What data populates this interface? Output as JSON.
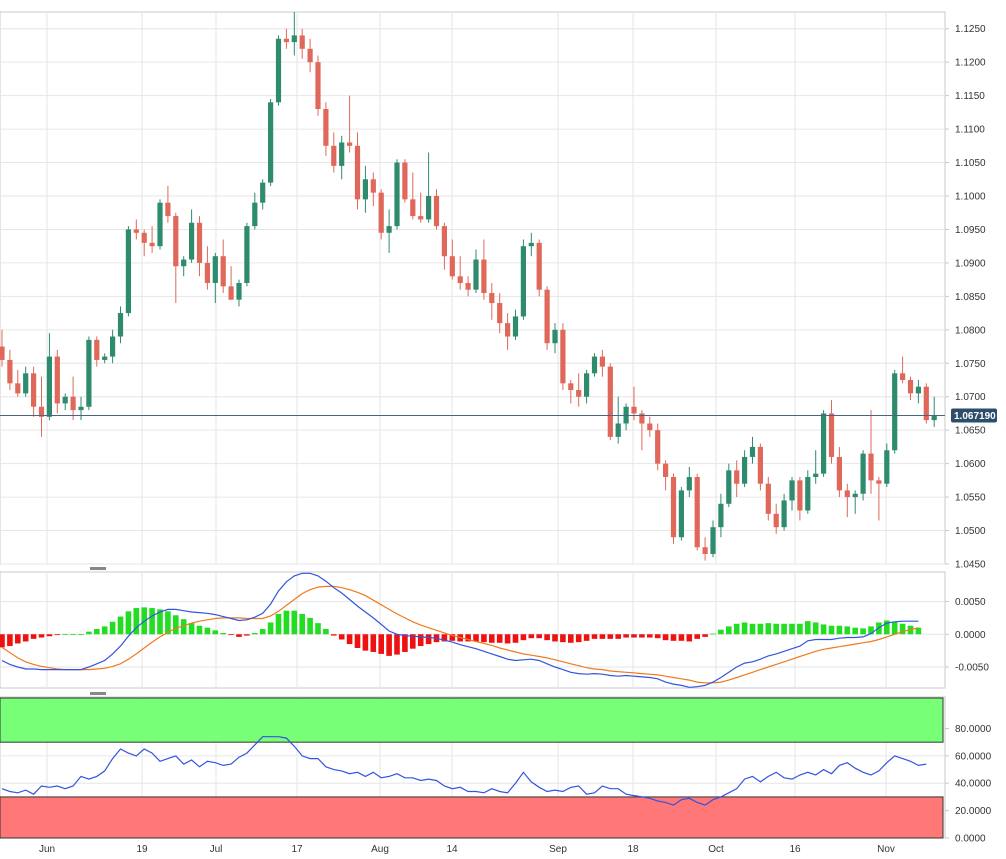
{
  "colors": {
    "up": "#2e8b6e",
    "down": "#e0685a",
    "grid": "#e6e6e6",
    "axis": "#c8c8c8",
    "macd_line": "#3355dd",
    "signal_line": "#f07a1e",
    "hist_pos": "#22dd22",
    "hist_neg": "#ee1111",
    "rsi_line": "#3355dd",
    "overbought_fill": "#77ff77",
    "oversold_fill": "#ff7777",
    "last_price_line": "#4a6580",
    "badge_bg": "#2e4d6b"
  },
  "x_axis": {
    "ticks": [
      "Jun",
      "19",
      "Jul",
      "17",
      "Aug",
      "14",
      "Sep",
      "18",
      "Oct",
      "16",
      "Nov"
    ]
  },
  "last_price_label": "1.067190",
  "chart_data": [
    {
      "type": "candlestick",
      "ylim": [
        1.045,
        1.1275
      ],
      "y_ticks": [
        "1.0450",
        "1.0500",
        "1.0550",
        "1.0600",
        "1.0650",
        "1.0700",
        "1.0750",
        "1.0800",
        "1.0850",
        "1.0900",
        "1.0950",
        "1.1000",
        "1.1050",
        "1.1100",
        "1.1150",
        "1.1200",
        "1.1250"
      ],
      "last_price": 1.06719,
      "ohlc": [
        [
          1.0775,
          1.08,
          1.0745,
          1.0755
        ],
        [
          1.0755,
          1.077,
          1.071,
          1.072
        ],
        [
          1.072,
          1.074,
          1.07,
          1.0705
        ],
        [
          1.0705,
          1.0745,
          1.07,
          1.0735
        ],
        [
          1.0735,
          1.0745,
          1.067,
          1.0685
        ],
        [
          1.0685,
          1.073,
          1.064,
          1.067
        ],
        [
          1.067,
          1.0795,
          1.0665,
          1.076
        ],
        [
          1.076,
          1.077,
          1.0675,
          1.069
        ],
        [
          1.069,
          1.0705,
          1.068,
          1.07
        ],
        [
          1.07,
          1.073,
          1.0665,
          1.068
        ],
        [
          1.068,
          1.07,
          1.0665,
          1.0685
        ],
        [
          1.0685,
          1.079,
          1.068,
          1.0785
        ],
        [
          1.0785,
          1.079,
          1.0745,
          1.0755
        ],
        [
          1.0755,
          1.0765,
          1.075,
          1.076
        ],
        [
          1.076,
          1.08,
          1.075,
          1.079
        ],
        [
          1.079,
          1.0835,
          1.078,
          1.0825
        ],
        [
          1.0825,
          1.0955,
          1.082,
          1.095
        ],
        [
          1.095,
          1.0965,
          1.0935,
          1.0945
        ],
        [
          1.0945,
          1.095,
          1.091,
          1.093
        ],
        [
          1.093,
          1.0955,
          1.0915,
          1.0925
        ],
        [
          1.0925,
          1.0995,
          1.092,
          1.099
        ],
        [
          1.099,
          1.1015,
          1.096,
          1.097
        ],
        [
          1.097,
          1.0975,
          1.084,
          1.0895
        ],
        [
          1.0895,
          1.091,
          1.088,
          1.0905
        ],
        [
          1.0905,
          1.098,
          1.09,
          1.096
        ],
        [
          1.096,
          1.097,
          1.088,
          1.09
        ],
        [
          1.09,
          1.0925,
          1.086,
          1.087
        ],
        [
          1.087,
          1.0915,
          1.084,
          1.091
        ],
        [
          1.091,
          1.0935,
          1.0855,
          1.0865
        ],
        [
          1.0865,
          1.0895,
          1.0845,
          1.0845
        ],
        [
          1.0845,
          1.0875,
          1.0835,
          1.087
        ],
        [
          1.087,
          1.096,
          1.0865,
          1.0955
        ],
        [
          1.0955,
          1.1005,
          1.095,
          1.099
        ],
        [
          1.099,
          1.1025,
          1.098,
          1.102
        ],
        [
          1.102,
          1.1145,
          1.1015,
          1.114
        ],
        [
          1.114,
          1.124,
          1.1135,
          1.1235
        ],
        [
          1.1235,
          1.125,
          1.122,
          1.123
        ],
        [
          1.123,
          1.1275,
          1.121,
          1.124
        ],
        [
          1.124,
          1.125,
          1.1205,
          1.122
        ],
        [
          1.122,
          1.1235,
          1.1185,
          1.12
        ],
        [
          1.12,
          1.121,
          1.112,
          1.113
        ],
        [
          1.113,
          1.114,
          1.106,
          1.1075
        ],
        [
          1.1075,
          1.1095,
          1.1035,
          1.1045
        ],
        [
          1.1045,
          1.109,
          1.1025,
          1.108
        ],
        [
          1.108,
          1.115,
          1.1065,
          1.1075
        ],
        [
          1.1075,
          1.1095,
          1.098,
          1.0995
        ],
        [
          1.0995,
          1.1045,
          1.0975,
          1.1025
        ],
        [
          1.1025,
          1.1035,
          1.0985,
          1.1005
        ],
        [
          1.1005,
          1.101,
          1.0935,
          1.0945
        ],
        [
          1.0945,
          1.098,
          1.0915,
          1.0955
        ],
        [
          1.0955,
          1.1055,
          1.095,
          1.105
        ],
        [
          1.105,
          1.1055,
          1.099,
          1.0995
        ],
        [
          1.0995,
          1.1035,
          1.0965,
          1.097
        ],
        [
          1.097,
          1.1005,
          1.096,
          1.0965
        ],
        [
          1.0965,
          1.1065,
          1.096,
          1.1
        ],
        [
          1.1,
          1.101,
          1.095,
          1.0955
        ],
        [
          1.0955,
          1.096,
          1.089,
          1.091
        ],
        [
          1.091,
          1.0935,
          1.0875,
          1.088
        ],
        [
          1.088,
          1.091,
          1.086,
          1.087
        ],
        [
          1.087,
          1.088,
          1.085,
          1.086
        ],
        [
          1.086,
          1.092,
          1.0855,
          1.0905
        ],
        [
          1.0905,
          1.0935,
          1.0845,
          1.0855
        ],
        [
          1.0855,
          1.087,
          1.0815,
          1.084
        ],
        [
          1.084,
          1.0855,
          1.0795,
          1.081
        ],
        [
          1.081,
          1.0825,
          1.077,
          1.079
        ],
        [
          1.079,
          1.083,
          1.0785,
          1.082
        ],
        [
          1.082,
          1.0935,
          1.0815,
          1.0925
        ],
        [
          1.0925,
          1.0945,
          1.091,
          1.093
        ],
        [
          1.093,
          1.0935,
          1.085,
          1.086
        ],
        [
          1.086,
          1.0865,
          1.077,
          1.078
        ],
        [
          1.078,
          1.081,
          1.0765,
          1.08
        ],
        [
          1.08,
          1.081,
          1.071,
          1.072
        ],
        [
          1.072,
          1.0725,
          1.069,
          1.071
        ],
        [
          1.071,
          1.0735,
          1.0685,
          1.07
        ],
        [
          1.07,
          1.074,
          1.069,
          1.0735
        ],
        [
          1.0735,
          1.0765,
          1.073,
          1.076
        ],
        [
          1.076,
          1.077,
          1.073,
          1.0745
        ],
        [
          1.0745,
          1.075,
          1.0635,
          1.064
        ],
        [
          1.064,
          1.07,
          1.063,
          1.066
        ],
        [
          1.066,
          1.069,
          1.065,
          1.0685
        ],
        [
          1.0685,
          1.0715,
          1.0665,
          1.0675
        ],
        [
          1.0675,
          1.068,
          1.062,
          1.066
        ],
        [
          1.066,
          1.067,
          1.064,
          1.065
        ],
        [
          1.065,
          1.066,
          1.059,
          1.06
        ],
        [
          1.06,
          1.0605,
          1.056,
          1.058
        ],
        [
          1.058,
          1.0585,
          1.048,
          1.049
        ],
        [
          1.049,
          1.0565,
          1.0485,
          1.056
        ],
        [
          1.056,
          1.0595,
          1.055,
          1.058
        ],
        [
          1.058,
          1.0585,
          1.047,
          1.0475
        ],
        [
          1.0475,
          1.049,
          1.0455,
          1.0465
        ],
        [
          1.0465,
          1.0515,
          1.046,
          1.0505
        ],
        [
          1.0505,
          1.0555,
          1.049,
          1.054
        ],
        [
          1.054,
          1.06,
          1.0535,
          1.059
        ],
        [
          1.059,
          1.0605,
          1.055,
          1.057
        ],
        [
          1.057,
          1.062,
          1.0565,
          1.061
        ],
        [
          1.061,
          1.064,
          1.06,
          1.0625
        ],
        [
          1.0625,
          1.063,
          1.056,
          1.057
        ],
        [
          1.057,
          1.058,
          1.0515,
          1.0525
        ],
        [
          1.0525,
          1.054,
          1.0495,
          1.0505
        ],
        [
          1.0505,
          1.0555,
          1.05,
          1.0545
        ],
        [
          1.0545,
          1.058,
          1.053,
          1.0575
        ],
        [
          1.0575,
          1.058,
          1.0515,
          1.053
        ],
        [
          1.053,
          1.059,
          1.0525,
          1.058
        ],
        [
          1.058,
          1.062,
          1.057,
          1.0585
        ],
        [
          1.0585,
          1.068,
          1.058,
          1.0675
        ],
        [
          1.0675,
          1.0695,
          1.06,
          1.061
        ],
        [
          1.061,
          1.0625,
          1.055,
          1.056
        ],
        [
          1.056,
          1.057,
          1.052,
          1.055
        ],
        [
          1.055,
          1.056,
          1.0525,
          1.0555
        ],
        [
          1.0555,
          1.062,
          1.0545,
          1.0615
        ],
        [
          1.0615,
          1.068,
          1.0555,
          1.0575
        ],
        [
          1.0575,
          1.058,
          1.0515,
          1.057
        ],
        [
          1.057,
          1.063,
          1.0565,
          1.062
        ],
        [
          1.062,
          1.074,
          1.0615,
          1.0735
        ],
        [
          1.0735,
          1.076,
          1.072,
          1.0725
        ],
        [
          1.0725,
          1.073,
          1.0695,
          1.0705
        ],
        [
          1.0705,
          1.0725,
          1.069,
          1.0715
        ],
        [
          1.0715,
          1.072,
          1.066,
          1.0665
        ],
        [
          1.0665,
          1.07,
          1.0655,
          1.06719
        ]
      ]
    },
    {
      "type": "macd",
      "ylim": [
        -0.0082,
        0.0095
      ],
      "y_ticks": [
        "0.0050",
        "0.0000",
        "-0.0050"
      ],
      "macd": [
        -0.004,
        -0.0046,
        -0.005,
        -0.0053,
        -0.0053,
        -0.0054,
        -0.0054,
        -0.0054,
        -0.0054,
        -0.0054,
        -0.0054,
        -0.005,
        -0.0045,
        -0.004,
        -0.003,
        -0.0018,
        -0.0003,
        0.001,
        0.002,
        0.0028,
        0.0034,
        0.0038,
        0.0038,
        0.0036,
        0.0034,
        0.0033,
        0.0032,
        0.003,
        0.0027,
        0.0024,
        0.0021,
        0.0022,
        0.0026,
        0.0032,
        0.0046,
        0.0066,
        0.008,
        0.0089,
        0.0093,
        0.0093,
        0.0089,
        0.0081,
        0.0071,
        0.0063,
        0.0053,
        0.0043,
        0.0034,
        0.0025,
        0.0015,
        0.0005,
        0.0,
        -0.0002,
        -0.0003,
        -0.0004,
        -0.0005,
        -0.0006,
        -0.0009,
        -0.0012,
        -0.0016,
        -0.0019,
        -0.0022,
        -0.0026,
        -0.003,
        -0.0034,
        -0.0038,
        -0.004,
        -0.0039,
        -0.0038,
        -0.004,
        -0.0045,
        -0.005,
        -0.0054,
        -0.0058,
        -0.006,
        -0.0061,
        -0.006,
        -0.0061,
        -0.0063,
        -0.0064,
        -0.0063,
        -0.0064,
        -0.0065,
        -0.0066,
        -0.0068,
        -0.0073,
        -0.0076,
        -0.0078,
        -0.0081,
        -0.008,
        -0.0078,
        -0.0073,
        -0.0066,
        -0.0058,
        -0.005,
        -0.0044,
        -0.0042,
        -0.0038,
        -0.0033,
        -0.003,
        -0.0026,
        -0.0022,
        -0.0018,
        -0.001,
        -0.0008,
        -0.0008,
        -0.0008,
        -0.0006,
        -0.0005,
        -0.0005,
        -0.0004,
        0.0001,
        0.001,
        0.0017,
        0.0019,
        0.002,
        0.002,
        0.002
      ],
      "signal": [
        -0.002,
        -0.0028,
        -0.0036,
        -0.0042,
        -0.0046,
        -0.0049,
        -0.0051,
        -0.0053,
        -0.0054,
        -0.0054,
        -0.0054,
        -0.0054,
        -0.0053,
        -0.0052,
        -0.0049,
        -0.0045,
        -0.0038,
        -0.003,
        -0.0021,
        -0.0012,
        -0.0004,
        0.0003,
        0.0009,
        0.0013,
        0.0017,
        0.002,
        0.0022,
        0.0024,
        0.0025,
        0.0025,
        0.0025,
        0.0024,
        0.0024,
        0.0024,
        0.0028,
        0.0035,
        0.0044,
        0.0053,
        0.0062,
        0.0068,
        0.0072,
        0.0073,
        0.0073,
        0.0071,
        0.0068,
        0.0064,
        0.0059,
        0.0052,
        0.0045,
        0.0038,
        0.0031,
        0.0025,
        0.0019,
        0.0014,
        0.001,
        0.0006,
        0.0002,
        -0.0002,
        -0.0005,
        -0.0008,
        -0.0011,
        -0.0014,
        -0.0017,
        -0.0021,
        -0.0024,
        -0.0027,
        -0.003,
        -0.0032,
        -0.0034,
        -0.0036,
        -0.0039,
        -0.0042,
        -0.0045,
        -0.0048,
        -0.0051,
        -0.0053,
        -0.0054,
        -0.0056,
        -0.0057,
        -0.0058,
        -0.0059,
        -0.006,
        -0.0061,
        -0.0062,
        -0.0064,
        -0.0066,
        -0.0068,
        -0.007,
        -0.0073,
        -0.0074,
        -0.0074,
        -0.0073,
        -0.007,
        -0.0066,
        -0.0062,
        -0.0058,
        -0.0054,
        -0.005,
        -0.0046,
        -0.0042,
        -0.0038,
        -0.0034,
        -0.003,
        -0.0026,
        -0.0023,
        -0.0021,
        -0.0019,
        -0.0017,
        -0.0015,
        -0.0013,
        -0.0011,
        -0.0008,
        -0.0004,
        0.0,
        0.0004,
        0.0007,
        0.001
      ],
      "histogram": [
        -0.002,
        -0.0018,
        -0.0014,
        -0.0011,
        -0.0007,
        -0.0005,
        -0.0003,
        -0.0001,
        0.0,
        0.0,
        0.0,
        0.0004,
        0.0008,
        0.0012,
        0.0019,
        0.0027,
        0.0035,
        0.004,
        0.0041,
        0.004,
        0.0038,
        0.0035,
        0.0029,
        0.0023,
        0.0017,
        0.0013,
        0.001,
        0.0006,
        0.0002,
        -0.0001,
        -0.0004,
        -0.0002,
        0.0002,
        0.0008,
        0.0018,
        0.0031,
        0.0036,
        0.0036,
        0.0031,
        0.0025,
        0.0017,
        0.0008,
        -0.0002,
        -0.0008,
        -0.0015,
        -0.0021,
        -0.0025,
        -0.0027,
        -0.003,
        -0.0033,
        -0.0031,
        -0.0027,
        -0.0022,
        -0.0018,
        -0.0015,
        -0.0012,
        -0.0011,
        -0.001,
        -0.0011,
        -0.0011,
        -0.0011,
        -0.0012,
        -0.0013,
        -0.0013,
        -0.0014,
        -0.0013,
        -0.0009,
        -0.0006,
        -0.0006,
        -0.0009,
        -0.0011,
        -0.0012,
        -0.0013,
        -0.0012,
        -0.001,
        -0.0007,
        -0.0007,
        -0.0007,
        -0.0007,
        -0.0005,
        -0.0005,
        -0.0005,
        -0.0005,
        -0.0006,
        -0.0009,
        -0.001,
        -0.001,
        -0.0011,
        -0.0007,
        -0.0004,
        0.0001,
        0.0007,
        0.0012,
        0.0016,
        0.0018,
        0.0016,
        0.0016,
        0.0017,
        0.0016,
        0.0016,
        0.0016,
        0.0016,
        0.002,
        0.0018,
        0.0015,
        0.0013,
        0.0013,
        0.0012,
        0.001,
        0.0009,
        0.0012,
        0.0018,
        0.0021,
        0.0019,
        0.0016,
        0.0013,
        0.001
      ]
    },
    {
      "type": "rsi",
      "ylim": [
        0,
        103
      ],
      "y_ticks": [
        "80.0000",
        "60.0000",
        "40.0000",
        "20.0000",
        "0.0000"
      ],
      "overbought": 70,
      "oversold": 30,
      "rsi": [
        36,
        34,
        33,
        35,
        32,
        38,
        37,
        38,
        36,
        38,
        45,
        43,
        45,
        49,
        58,
        65,
        62,
        60,
        65,
        62,
        56,
        58,
        60,
        54,
        57,
        52,
        56,
        55,
        53,
        54,
        59,
        62,
        68,
        74,
        74,
        74,
        73,
        67,
        60,
        58,
        58,
        52,
        50,
        49,
        47,
        48,
        45,
        48,
        44,
        45,
        47,
        44,
        44,
        42,
        43,
        42,
        38,
        36,
        37,
        34,
        34,
        33,
        36,
        34,
        33,
        40,
        48,
        41,
        37,
        34,
        35,
        34,
        37,
        38,
        32,
        33,
        38,
        36,
        36,
        32,
        31,
        30,
        29,
        27,
        26,
        24,
        28,
        29,
        26,
        24,
        28,
        30,
        33,
        36,
        43,
        45,
        41,
        45,
        48,
        44,
        43,
        46,
        48,
        46,
        50,
        47,
        53,
        55,
        51,
        48,
        46,
        49,
        55,
        60,
        58,
        56,
        53,
        54
      ]
    }
  ]
}
